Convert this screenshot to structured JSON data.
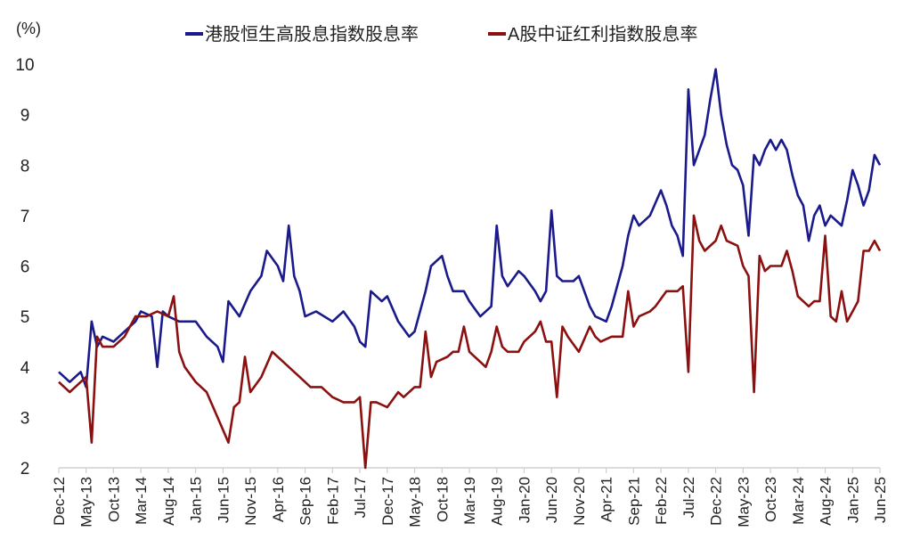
{
  "chart_data": {
    "type": "line",
    "title": "",
    "ylabel": "(%)",
    "xlabel": "",
    "ylim": [
      2,
      10
    ],
    "yticks": [
      2,
      3,
      4,
      5,
      6,
      7,
      8,
      9,
      10
    ],
    "grid": false,
    "legend_position": "top-center",
    "x_unit": "months since Dec-12",
    "xlim": [
      0,
      150
    ],
    "xtick_labels": [
      "Dec-12",
      "May-13",
      "Oct-13",
      "Mar-14",
      "Aug-14",
      "Jan-15",
      "Jun-15",
      "Nov-15",
      "Apr-16",
      "Sep-16",
      "Feb-17",
      "Jul-17",
      "Dec-17",
      "May-18",
      "Oct-18",
      "Mar-19",
      "Aug-19",
      "Jan-20",
      "Jun-20",
      "Nov-20",
      "Apr-21",
      "Sep-21",
      "Feb-22",
      "Jul-22",
      "Dec-22",
      "May-23",
      "Oct-23",
      "Mar-24",
      "Aug-24",
      "Jan-25",
      "Jun-25"
    ],
    "series": [
      {
        "name": "港股恒生高股息指数股息率",
        "color": "#1a1a8c",
        "x": [
          0,
          2,
          4,
          5,
          6,
          7,
          8,
          10,
          12,
          14,
          15,
          17,
          18,
          19,
          20,
          22,
          25,
          27,
          29,
          30,
          31,
          33,
          35,
          37,
          38,
          40,
          41,
          42,
          43,
          44,
          45,
          47,
          50,
          52,
          54,
          55,
          56,
          57,
          59,
          60,
          62,
          64,
          65,
          67,
          68,
          70,
          71,
          72,
          74,
          75,
          77,
          79,
          80,
          81,
          82,
          84,
          85,
          87,
          88,
          89,
          90,
          91,
          92,
          94,
          95,
          97,
          98,
          100,
          101,
          103,
          104,
          105,
          106,
          108,
          110,
          111,
          112,
          113,
          114,
          115,
          116,
          117,
          118,
          119,
          120,
          121,
          122,
          123,
          124,
          125,
          126,
          127,
          128,
          129,
          130,
          131,
          132,
          133,
          134,
          135,
          136,
          137,
          138,
          139,
          140,
          141,
          142,
          143,
          144,
          145,
          146,
          147,
          148,
          149,
          150
        ],
        "y": [
          3.9,
          3.7,
          3.9,
          3.6,
          4.9,
          4.4,
          4.6,
          4.5,
          4.7,
          4.9,
          5.1,
          5.0,
          4.0,
          5.1,
          5.0,
          4.9,
          4.9,
          4.6,
          4.4,
          4.1,
          5.3,
          5.0,
          5.5,
          5.8,
          6.3,
          6.0,
          5.7,
          6.8,
          5.8,
          5.5,
          5.0,
          5.1,
          4.9,
          5.1,
          4.8,
          4.5,
          4.4,
          5.5,
          5.3,
          5.4,
          4.9,
          4.6,
          4.7,
          5.5,
          6.0,
          6.2,
          5.8,
          5.5,
          5.5,
          5.3,
          5.0,
          5.2,
          6.8,
          5.8,
          5.6,
          5.9,
          5.8,
          5.5,
          5.3,
          5.5,
          7.1,
          5.8,
          5.7,
          5.7,
          5.8,
          5.2,
          5.0,
          4.9,
          5.2,
          6.0,
          6.6,
          7.0,
          6.8,
          7.0,
          7.5,
          7.2,
          6.8,
          6.6,
          6.2,
          9.5,
          8.0,
          8.3,
          8.6,
          9.3,
          9.9,
          9.0,
          8.4,
          8.0,
          7.9,
          7.6,
          6.6,
          8.2,
          8.0,
          8.3,
          8.5,
          8.3,
          8.5,
          8.3,
          7.8,
          7.4,
          7.2,
          6.5,
          7.0,
          7.2,
          6.8,
          7.0,
          6.9,
          6.8,
          7.3,
          7.9,
          7.6,
          7.2,
          7.5,
          8.2,
          8.0
        ]
      },
      {
        "name": "A股中证红利指数股息率",
        "color": "#8b1010",
        "x": [
          0,
          2,
          3,
          5,
          6,
          7,
          8,
          10,
          12,
          14,
          16,
          18,
          20,
          21,
          22,
          23,
          25,
          27,
          29,
          31,
          32,
          33,
          34,
          35,
          37,
          39,
          41,
          42,
          44,
          46,
          48,
          50,
          52,
          54,
          55,
          56,
          57,
          58,
          60,
          62,
          63,
          65,
          66,
          67,
          68,
          69,
          71,
          72,
          73,
          74,
          75,
          76,
          78,
          79,
          80,
          81,
          82,
          84,
          85,
          87,
          88,
          89,
          90,
          91,
          92,
          93,
          95,
          97,
          98,
          99,
          101,
          103,
          104,
          105,
          106,
          108,
          109,
          111,
          113,
          114,
          115,
          116,
          117,
          118,
          120,
          121,
          122,
          124,
          125,
          126,
          127,
          128,
          129,
          130,
          132,
          133,
          134,
          135,
          137,
          138,
          139,
          140,
          141,
          142,
          143,
          144,
          145,
          146,
          147,
          148,
          149,
          150
        ],
        "y": [
          3.7,
          3.5,
          3.6,
          3.8,
          2.5,
          4.6,
          4.4,
          4.4,
          4.6,
          5.0,
          5.0,
          5.1,
          5.0,
          5.4,
          4.3,
          4.0,
          3.7,
          3.5,
          3.0,
          2.5,
          3.2,
          3.3,
          4.2,
          3.5,
          3.8,
          4.3,
          4.1,
          4.0,
          3.8,
          3.6,
          3.6,
          3.4,
          3.3,
          3.3,
          3.4,
          2.0,
          3.3,
          3.3,
          3.2,
          3.5,
          3.4,
          3.6,
          3.6,
          4.7,
          3.8,
          4.1,
          4.2,
          4.3,
          4.3,
          4.8,
          4.3,
          4.2,
          4.0,
          4.3,
          4.8,
          4.4,
          4.3,
          4.3,
          4.5,
          4.7,
          4.9,
          4.5,
          4.5,
          3.4,
          4.8,
          4.6,
          4.3,
          4.8,
          4.6,
          4.5,
          4.6,
          4.6,
          5.5,
          4.8,
          5.0,
          5.1,
          5.2,
          5.5,
          5.5,
          5.6,
          3.9,
          7.0,
          6.5,
          6.3,
          6.5,
          6.8,
          6.5,
          6.4,
          6.0,
          5.8,
          3.5,
          6.2,
          5.9,
          6.0,
          6.0,
          6.3,
          5.9,
          5.4,
          5.2,
          5.3,
          5.3,
          6.6,
          5.0,
          4.9,
          5.5,
          4.9,
          5.1,
          5.3,
          6.3,
          6.3,
          6.5,
          6.3
        ]
      }
    ]
  }
}
